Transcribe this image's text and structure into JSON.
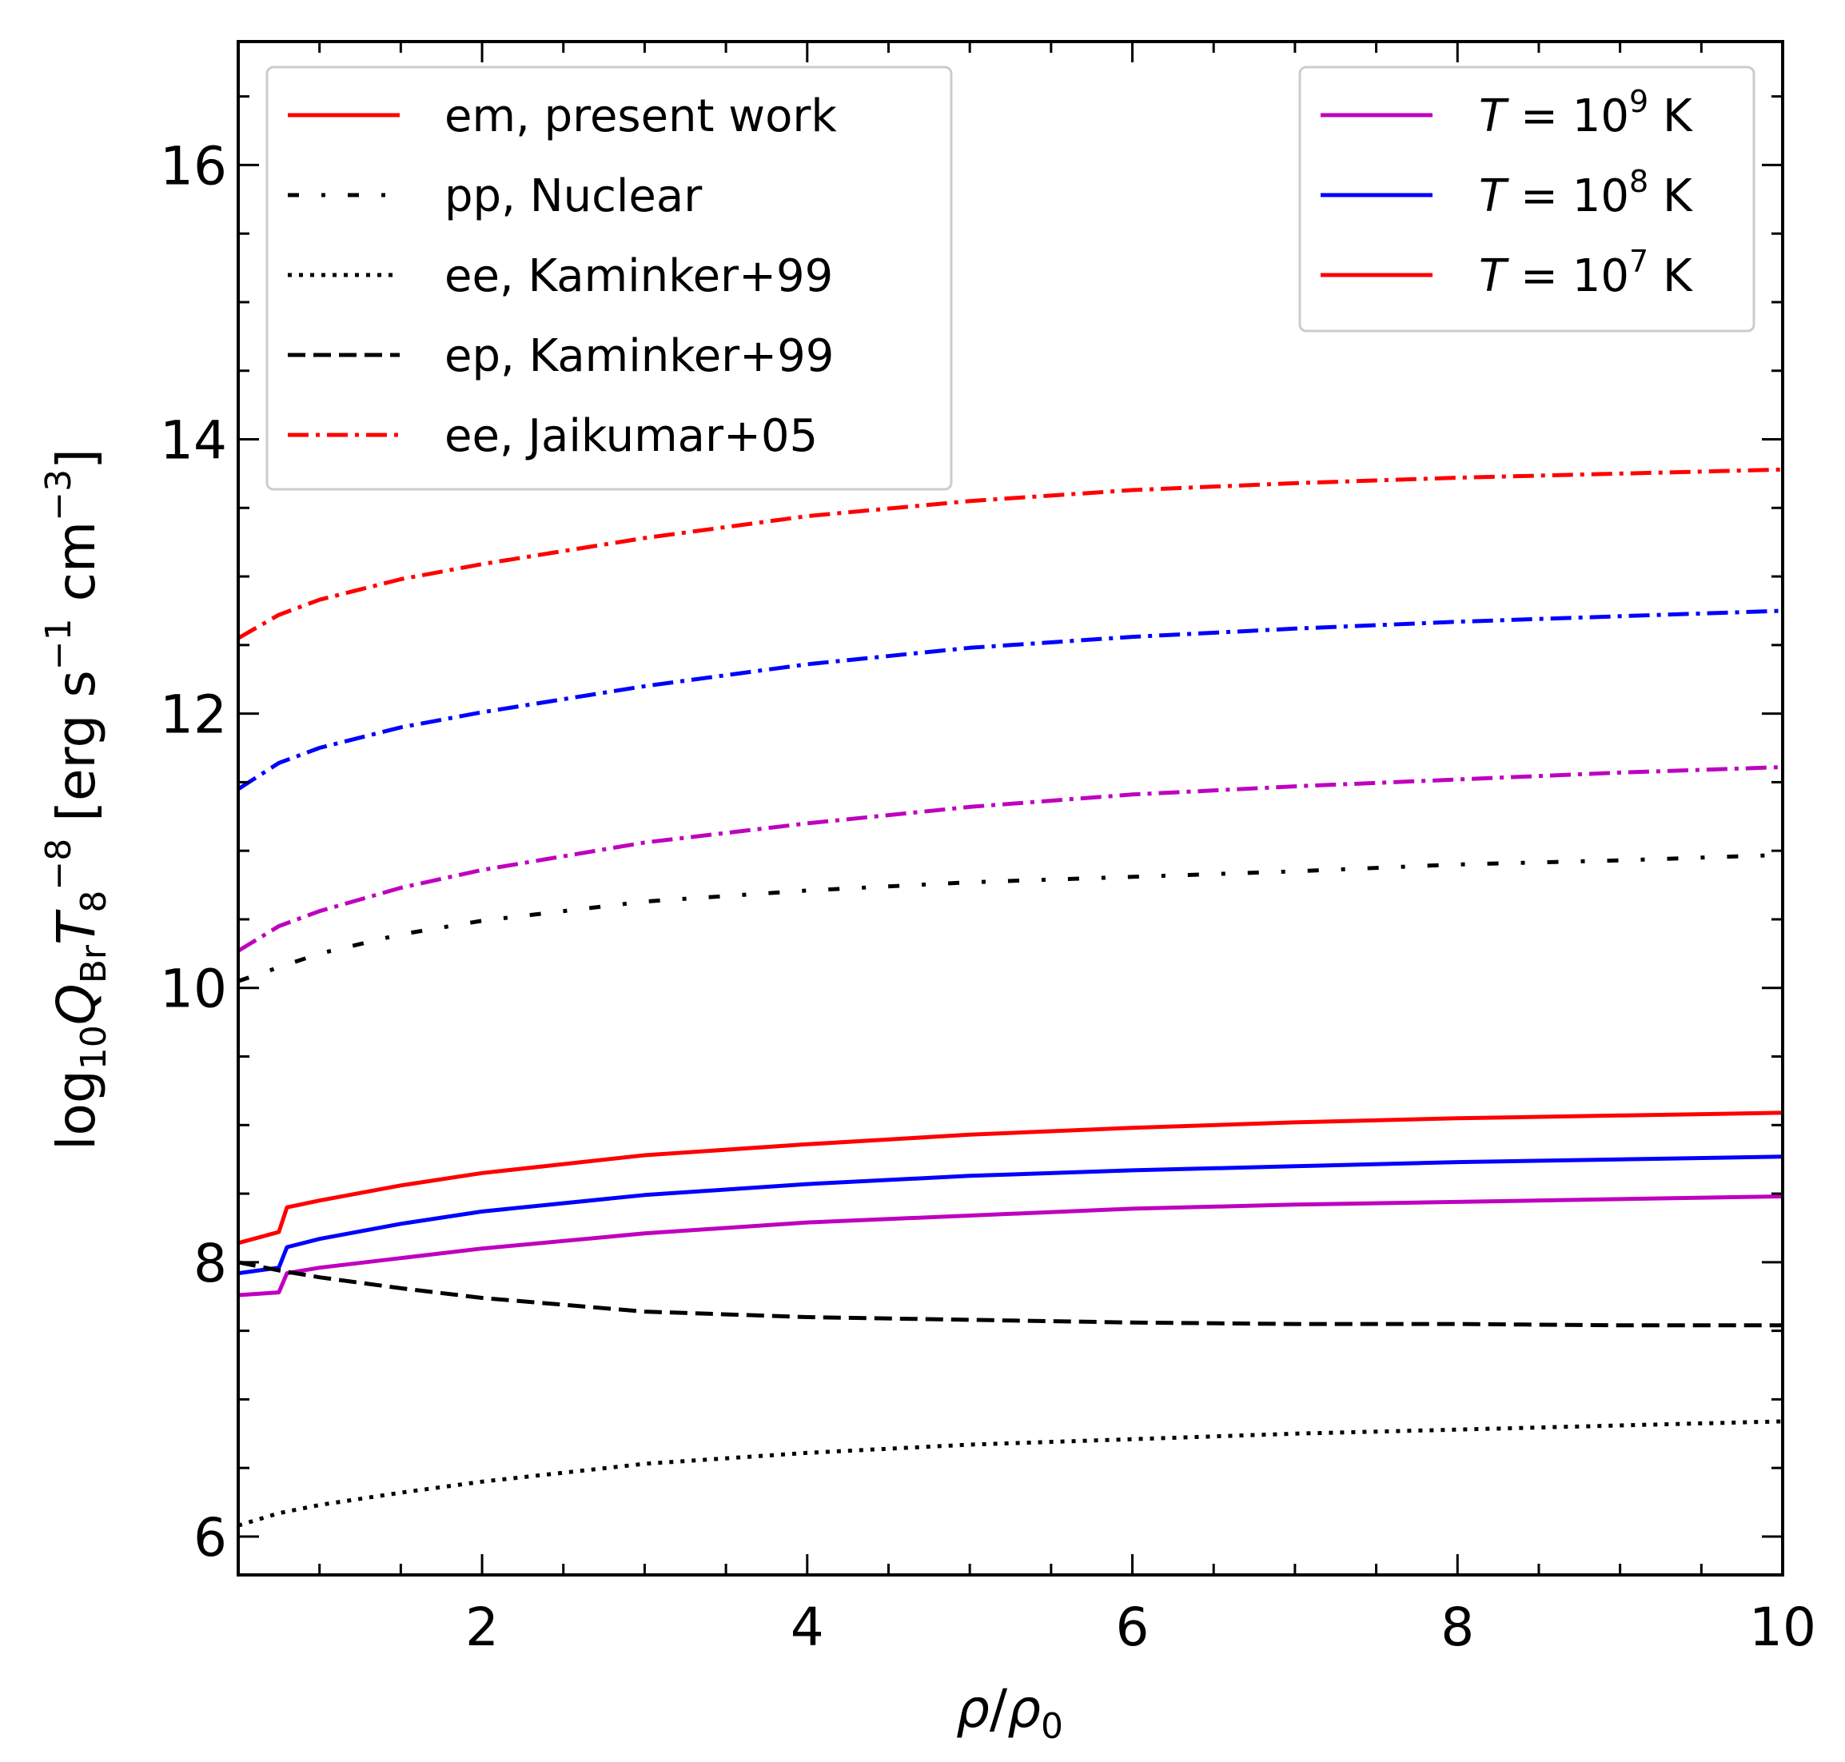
{
  "chart_data": {
    "type": "line",
    "title": "",
    "xlabel": "ρ/ρ0",
    "ylabel": "log10 Q_Br T8^-8 [erg s^-1 cm^-3]",
    "xlim": [
      0.5,
      10
    ],
    "ylim": [
      5.72,
      16.9
    ],
    "xticks": [
      2,
      4,
      6,
      8,
      10
    ],
    "yticks": [
      6,
      8,
      10,
      12,
      14,
      16
    ],
    "xtick_labels": [
      "2",
      "4",
      "6",
      "8",
      "10"
    ],
    "ytick_labels": [
      "6",
      "8",
      "10",
      "12",
      "14",
      "16"
    ],
    "x": [
      0.5,
      0.75,
      0.8,
      1.0,
      1.5,
      2,
      3,
      4,
      5,
      6,
      7,
      8,
      9,
      10
    ],
    "series": [
      {
        "name": "em, present work, T = 10^9 K",
        "color": "#bf00bf",
        "style": "solid",
        "x": [
          0.5,
          0.75,
          0.8,
          1.0,
          1.5,
          2,
          3,
          4,
          5,
          6,
          7,
          8,
          9,
          10
        ],
        "values": [
          7.76,
          7.78,
          7.92,
          7.96,
          8.03,
          8.1,
          8.21,
          8.29,
          8.34,
          8.39,
          8.42,
          8.44,
          8.46,
          8.48
        ]
      },
      {
        "name": "em, present work, T = 10^8 K",
        "color": "#0000ff",
        "style": "solid",
        "x": [
          0.5,
          0.75,
          0.8,
          1.0,
          1.5,
          2,
          3,
          4,
          5,
          6,
          7,
          8,
          9,
          10
        ],
        "values": [
          7.92,
          7.96,
          8.11,
          8.17,
          8.28,
          8.37,
          8.49,
          8.57,
          8.63,
          8.67,
          8.7,
          8.73,
          8.75,
          8.77
        ]
      },
      {
        "name": "em, present work, T = 10^7 K",
        "color": "#ff0000",
        "style": "solid",
        "x": [
          0.5,
          0.75,
          0.8,
          1.0,
          1.5,
          2,
          3,
          4,
          5,
          6,
          7,
          8,
          9,
          10
        ],
        "values": [
          8.14,
          8.22,
          8.4,
          8.45,
          8.56,
          8.65,
          8.78,
          8.86,
          8.93,
          8.98,
          9.02,
          9.05,
          9.07,
          9.09
        ]
      },
      {
        "name": "pp, Nuclear",
        "color": "#000000",
        "style": "dashdot-sparse",
        "x": [
          0.5,
          1,
          1.5,
          2,
          3,
          4,
          5,
          6,
          7,
          8,
          9,
          10
        ],
        "values": [
          10.05,
          10.25,
          10.39,
          10.49,
          10.63,
          10.71,
          10.77,
          10.81,
          10.85,
          10.9,
          10.93,
          10.97
        ]
      },
      {
        "name": "ee, Kaminker+99",
        "color": "#000000",
        "style": "dotted",
        "x": [
          0.5,
          0.75,
          1,
          1.5,
          2,
          3,
          4,
          5,
          6,
          7,
          8,
          9,
          10
        ],
        "values": [
          6.08,
          6.17,
          6.23,
          6.32,
          6.4,
          6.53,
          6.61,
          6.67,
          6.71,
          6.75,
          6.78,
          6.81,
          6.84
        ]
      },
      {
        "name": "ep, Kaminker+99",
        "color": "#000000",
        "style": "dashed",
        "x": [
          0.5,
          0.75,
          1,
          1.5,
          2,
          3,
          4,
          5,
          6,
          7,
          8,
          9,
          10
        ],
        "values": [
          8.0,
          7.94,
          7.89,
          7.81,
          7.74,
          7.64,
          7.6,
          7.58,
          7.56,
          7.55,
          7.55,
          7.54,
          7.54
        ]
      },
      {
        "name": "ee, Jaikumar+05, T = 10^9 K",
        "color": "#bf00bf",
        "style": "dashdot",
        "x": [
          0.5,
          0.75,
          1,
          1.5,
          2,
          3,
          4,
          5,
          6,
          7,
          8,
          9,
          10
        ],
        "values": [
          10.27,
          10.45,
          10.56,
          10.73,
          10.86,
          11.06,
          11.2,
          11.32,
          11.41,
          11.47,
          11.52,
          11.57,
          11.61
        ]
      },
      {
        "name": "ee, Jaikumar+05, T = 10^8 K",
        "color": "#0000ff",
        "style": "dashdot",
        "x": [
          0.5,
          0.75,
          1,
          1.5,
          2,
          3,
          4,
          5,
          6,
          7,
          8,
          9,
          10
        ],
        "values": [
          11.45,
          11.64,
          11.75,
          11.9,
          12.01,
          12.2,
          12.36,
          12.48,
          12.56,
          12.62,
          12.67,
          12.71,
          12.75
        ]
      },
      {
        "name": "ee, Jaikumar+05, T = 10^7 K",
        "color": "#ff0000",
        "style": "dashdot",
        "x": [
          0.5,
          0.75,
          1,
          1.5,
          2,
          3,
          4,
          5,
          6,
          7,
          8,
          9,
          10
        ],
        "values": [
          12.55,
          12.72,
          12.83,
          12.98,
          13.09,
          13.28,
          13.44,
          13.55,
          13.63,
          13.68,
          13.72,
          13.75,
          13.78
        ]
      }
    ],
    "legends": [
      {
        "placement": "top-left",
        "entries": [
          {
            "label": "em, present work",
            "color": "#ff0000",
            "style": "solid"
          },
          {
            "label": "pp, Nuclear",
            "color": "#000000",
            "style": "dashdot-sparse"
          },
          {
            "label": "ee, Kaminker+99",
            "color": "#000000",
            "style": "dotted"
          },
          {
            "label": "ep, Kaminker+99",
            "color": "#000000",
            "style": "dashed"
          },
          {
            "label": "ee, Jaikumar+05",
            "color": "#ff0000",
            "style": "dashdot"
          }
        ]
      },
      {
        "placement": "top-right",
        "entries": [
          {
            "label": "T = 10^9 K",
            "base": "10",
            "exp": "9",
            "color": "#bf00bf",
            "style": "solid"
          },
          {
            "label": "T = 10^8 K",
            "base": "10",
            "exp": "8",
            "color": "#0000ff",
            "style": "solid"
          },
          {
            "label": "T = 10^7 K",
            "base": "10",
            "exp": "7",
            "color": "#ff0000",
            "style": "solid"
          }
        ]
      }
    ],
    "grid": false
  }
}
